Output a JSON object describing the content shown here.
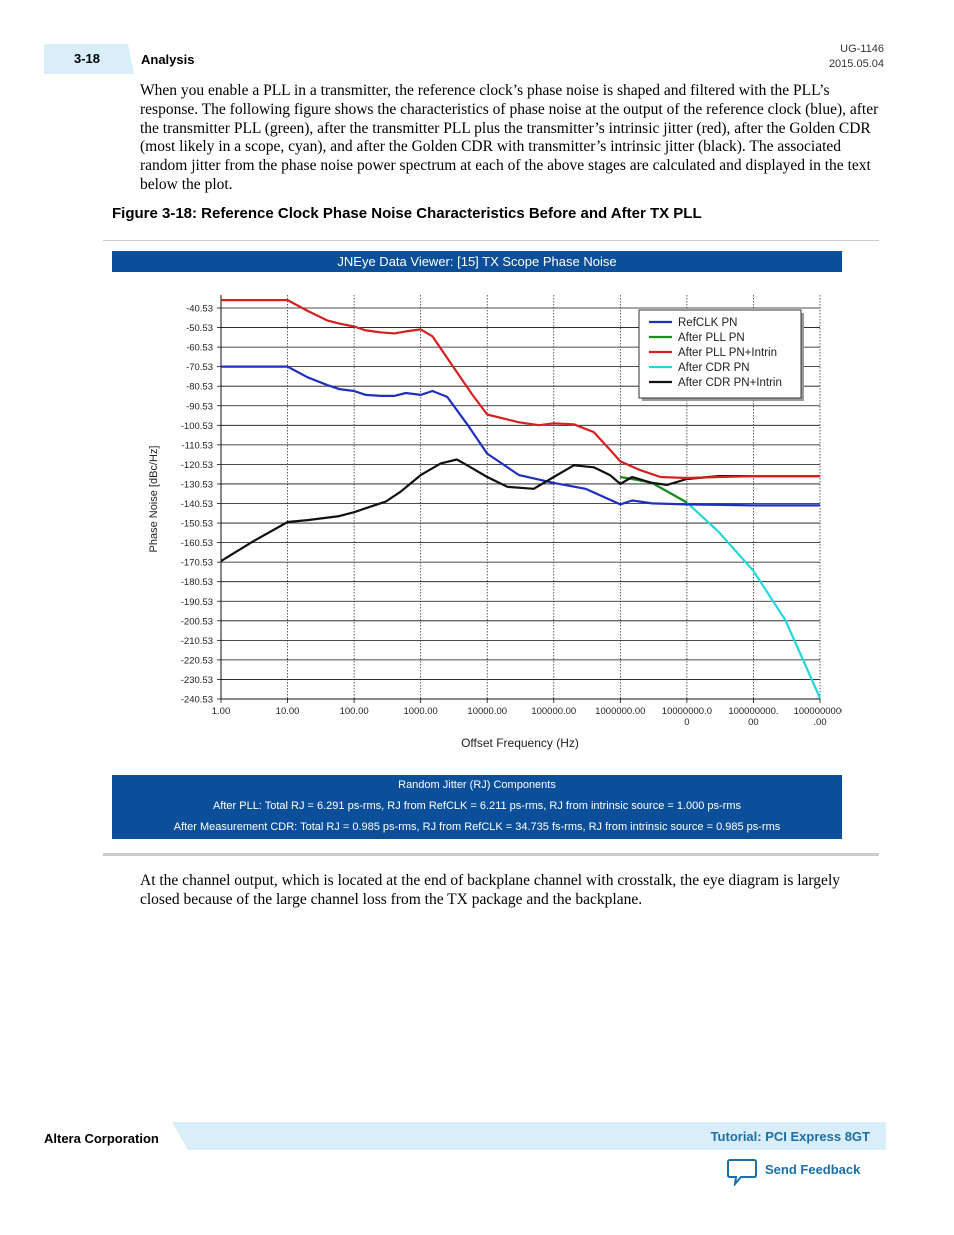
{
  "header": {
    "page_number": "3-18",
    "section": "Analysis",
    "doc_id": "UG-1146",
    "doc_date": "2015.05.04"
  },
  "intro_paragraph": "When you enable a PLL in a transmitter, the reference clock’s phase noise is shaped and filtered with the PLL’s response. The following figure shows the characteristics of phase noise at the output of the reference clock (blue), after the transmitter PLL (green), after the transmitter PLL plus the transmitter’s intrinsic jitter (red), after the Golden CDR (most likely in a scope, cyan), and after the Golden CDR with transmitter’s intrinsic jitter (black). The associated random jitter from the phase noise power spectrum at each of the above stages are calculated and displayed in the text below the plot.",
  "figure_title": "Figure 3-18: Reference Clock Phase Noise Characteristics Before and After TX PLL",
  "viewer_title": "JNEye Data Viewer: [15] TX Scope Phase Noise",
  "chart_data": {
    "type": "line",
    "xlabel": "Offset Frequency (Hz)",
    "ylabel": "Phase Noise [dBc/Hz]",
    "x_scale": "log",
    "xlim": [
      1,
      1000000000
    ],
    "ylim": [
      -240.53,
      -40.53
    ],
    "grid": true,
    "legend_position": "top-right",
    "x_tick_labels": [
      [
        "1.00"
      ],
      [
        "10.00"
      ],
      [
        "100.00"
      ],
      [
        "1000.00"
      ],
      [
        "10000.00"
      ],
      [
        "100000.00"
      ],
      [
        "1000000.00"
      ],
      [
        "10000000.0",
        "0"
      ],
      [
        "100000000.",
        "00"
      ],
      [
        "1000000000",
        ".00"
      ]
    ],
    "y_tick_labels": [
      "-40.53",
      "-50.53",
      "-60.53",
      "-70.53",
      "-80.53",
      "-90.53",
      "-100.53",
      "-110.53",
      "-120.53",
      "-130.53",
      "-140.53",
      "-150.53",
      "-160.53",
      "-170.53",
      "-180.53",
      "-190.53",
      "-200.53",
      "-210.53",
      "-220.53",
      "-230.53",
      "-240.53"
    ],
    "series": [
      {
        "name": "RefCLK PN",
        "color": "#1f2fbf",
        "x": [
          1,
          10,
          20,
          40,
          60,
          100,
          150,
          250,
          400,
          600,
          1000,
          1500,
          2500,
          5000,
          10000,
          30000,
          100000,
          300000,
          1000000,
          1500000,
          3000000,
          10000000,
          100000000,
          1000000000
        ],
        "y": [
          -70.5,
          -70.5,
          -76,
          -80,
          -82,
          -83,
          -85,
          -85.5,
          -85.5,
          -84,
          -85,
          -83,
          -86,
          -100,
          -115,
          -126,
          -130,
          -133,
          -141,
          -139,
          -140.5,
          -141,
          -141.5,
          -141.5
        ]
      },
      {
        "name": "After PLL PN",
        "color": "#1e8a1e",
        "x": [
          1000000,
          1500000,
          3000000,
          10000000
        ],
        "y": [
          -127,
          -128,
          -130,
          -140
        ]
      },
      {
        "name": "After PLL PN+Intrin",
        "color": "#d42020",
        "x": [
          1,
          10,
          20,
          40,
          60,
          100,
          150,
          250,
          400,
          600,
          1000,
          1500,
          3000,
          6000,
          10000,
          30000,
          60000,
          100000,
          200000,
          400000,
          700000,
          1000000,
          2000000,
          4000000,
          10000000,
          30000000,
          100000000,
          1000000000
        ],
        "y": [
          -36.5,
          -36.5,
          -42,
          -47,
          -48.5,
          -50,
          -52,
          -53,
          -53.5,
          -52.5,
          -51.5,
          -55,
          -70,
          -85,
          -95,
          -99,
          -100.5,
          -99.5,
          -100,
          -104,
          -113,
          -119,
          -123.5,
          -127,
          -127.5,
          -127,
          -126.5,
          -126.5
        ]
      },
      {
        "name": "After CDR PN",
        "color": "#22d8d8",
        "x": [
          3000000,
          10000000,
          30000000,
          100000000,
          300000000,
          1000000000
        ],
        "y": [
          -130,
          -140,
          -155,
          -175,
          -200,
          -240
        ]
      },
      {
        "name": "After CDR PN+Intrin",
        "color": "#111111",
        "x": [
          1,
          3,
          10,
          20,
          60,
          100,
          200,
          300,
          500,
          1000,
          2000,
          3500,
          5000,
          10000,
          20000,
          50000,
          100000,
          200000,
          400000,
          700000,
          1000000,
          1500000,
          3000000,
          5000000,
          10000000,
          30000000,
          100000000,
          1000000000
        ],
        "y": [
          -170,
          -160,
          -150,
          -149,
          -147,
          -145,
          -141.5,
          -139.5,
          -134.5,
          -126,
          -120,
          -118,
          -121,
          -127,
          -132,
          -133,
          -127,
          -121,
          -122,
          -126,
          -130.5,
          -127,
          -130,
          -131,
          -128,
          -126.5,
          -126.5,
          -126.5
        ]
      }
    ]
  },
  "rj_components": {
    "title": "Random Jitter (RJ) Components",
    "line1": "After PLL: Total RJ = 6.291 ps-rms, RJ from RefCLK = 6.211 ps-rms, RJ from intrinsic source = 1.000 ps-rms",
    "line2": "After Measurement CDR: Total RJ = 0.985 ps-rms, RJ from RefCLK = 34.735 fs-rms, RJ from intrinsic source = 0.985 ps-rms"
  },
  "closing_paragraph": "At the channel output, which is located at the end of backplane channel with crosstalk, the eye diagram is largely closed because of the large channel loss from the TX package and the backplane.",
  "footer": {
    "company": "Altera Corporation",
    "doc_title": "Tutorial: PCI Express 8GT",
    "feedback_label": "Send Feedback",
    "feedback_icon": "speech-bubble-icon"
  }
}
